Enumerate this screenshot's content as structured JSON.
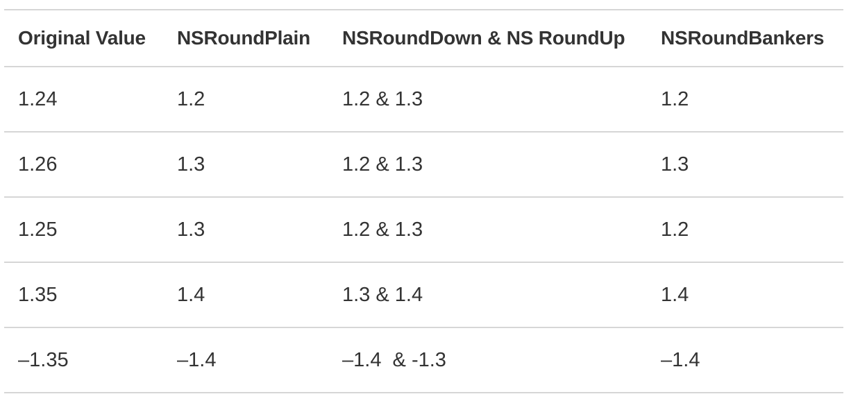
{
  "table": {
    "headers": [
      "Original Value",
      "NSRoundPlain",
      "NSRoundDown & NS RoundUp",
      "NSRoundBankers"
    ],
    "rows": [
      [
        "1.24",
        "1.2",
        "1.2 & 1.3",
        "1.2"
      ],
      [
        "1.26",
        "1.3",
        "1.2 & 1.3",
        "1.3"
      ],
      [
        "1.25",
        "1.3",
        "1.2 & 1.3",
        "1.2"
      ],
      [
        "1.35",
        "1.4",
        "1.3 & 1.4",
        "1.4"
      ],
      [
        "–1.35",
        "–1.4",
        "–1.4  & -1.3",
        "–1.4"
      ]
    ]
  }
}
